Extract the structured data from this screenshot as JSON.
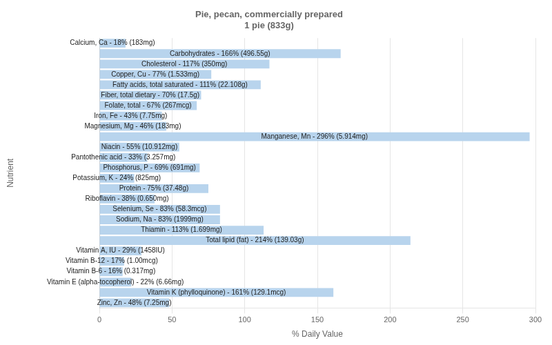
{
  "chart_data": {
    "type": "bar",
    "orientation": "horizontal",
    "title": "Pie, pecan, commercially prepared\n1 pie (833g)",
    "xlabel": "% Daily Value",
    "ylabel": "Nutrient",
    "categories": [
      "Calcium, Ca - 18% (183mg)",
      "Carbohydrates - 166% (496.55g)",
      "Cholesterol - 117% (350mg)",
      "Copper, Cu - 77% (1.533mg)",
      "Fatty acids, total saturated - 111% (22.108g)",
      "Fiber, total dietary - 70% (17.5g)",
      "Folate, total - 67% (267mcg)",
      "Iron, Fe - 43% (7.75mg)",
      "Magnesium, Mg - 46% (183mg)",
      "Manganese, Mn - 296% (5.914mg)",
      "Niacin - 55% (10.912mg)",
      "Pantothenic acid - 33% (3.257mg)",
      "Phosphorus, P - 69% (691mg)",
      "Potassium, K - 24% (825mg)",
      "Protein - 75% (37.48g)",
      "Riboflavin - 38% (0.650mg)",
      "Selenium, Se - 83% (58.3mcg)",
      "Sodium, Na - 83% (1999mg)",
      "Thiamin - 113% (1.699mg)",
      "Total lipid (fat) - 214% (139.03g)",
      "Vitamin A, IU - 29% (1458IU)",
      "Vitamin B-12 - 17% (1.00mcg)",
      "Vitamin B-6 - 16% (0.317mg)",
      "Vitamin E (alpha-tocopherol) - 22% (6.66mg)",
      "Vitamin K (phylloquinone) - 161% (129.1mcg)",
      "Zinc, Zn - 48% (7.25mg)"
    ],
    "values": [
      18,
      166,
      117,
      77,
      111,
      70,
      67,
      43,
      46,
      296,
      55,
      33,
      69,
      24,
      75,
      38,
      83,
      83,
      113,
      214,
      29,
      17,
      16,
      22,
      161,
      48
    ],
    "color": "#b8d4ed",
    "xlim": [
      0,
      300
    ],
    "xticks": [
      0,
      50,
      100,
      150,
      200,
      250,
      300
    ],
    "grid": true,
    "tick_labels": "x"
  }
}
